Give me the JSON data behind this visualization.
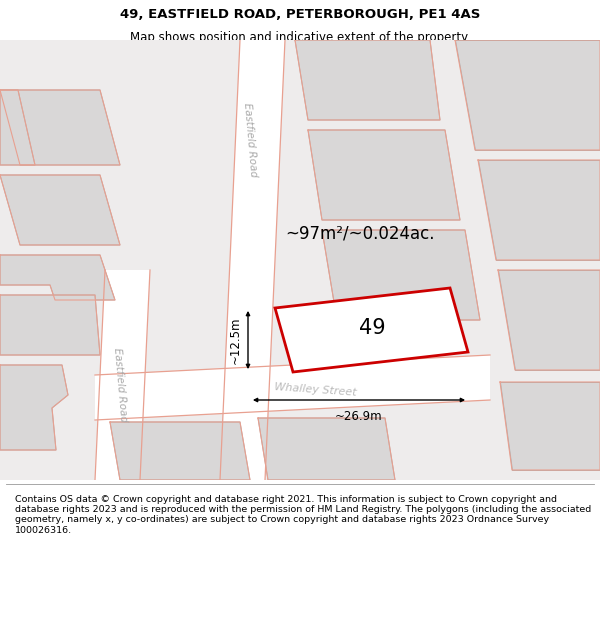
{
  "title_line1": "49, EASTFIELD ROAD, PETERBOROUGH, PE1 4AS",
  "title_line2": "Map shows position and indicative extent of the property.",
  "footer_text": "Contains OS data © Crown copyright and database right 2021. This information is subject to Crown copyright and database rights 2023 and is reproduced with the permission of HM Land Registry. The polygons (including the associated geometry, namely x, y co-ordinates) are subject to Crown copyright and database rights 2023 Ordnance Survey 100026316.",
  "map_background": "#eeecec",
  "building_fill": "#d9d7d7",
  "building_edge": "#b0aeae",
  "highlight_edge": "#cc0000",
  "highlight_lw": 2.0,
  "street_line_color": "#e8a090",
  "area_text": "~97m²/~0.024ac.",
  "label_49": "49",
  "dim_width": "~26.9m",
  "dim_height": "~12.5m",
  "title_fontsize": 9.5,
  "subtitle_fontsize": 8.5,
  "footer_fontsize": 6.8
}
